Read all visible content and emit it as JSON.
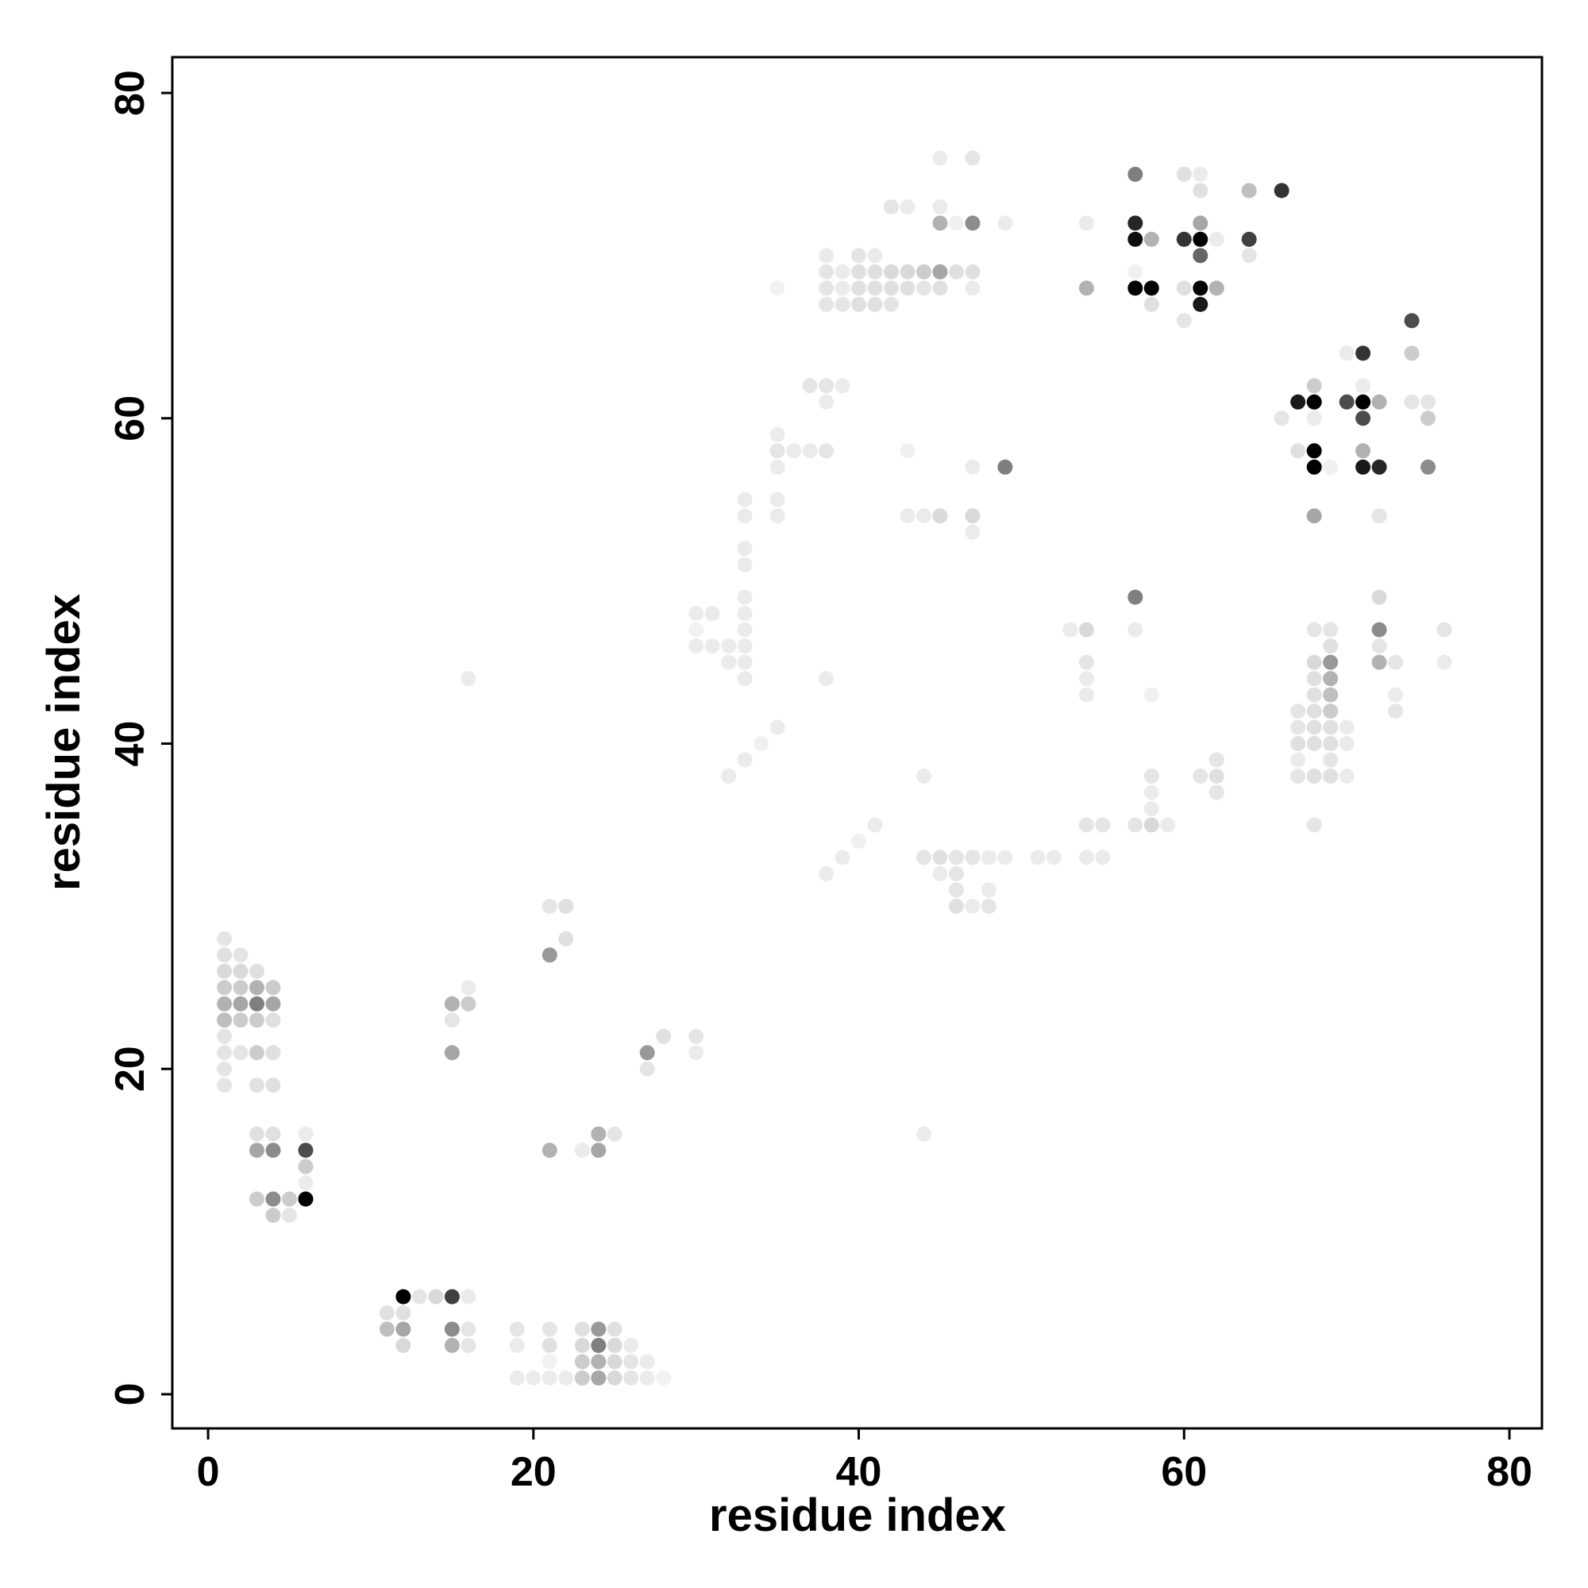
{
  "chart_data": {
    "type": "scatter",
    "title": "",
    "xlabel": "residue index",
    "ylabel": "residue index",
    "xlim": [
      -2.2,
      82
    ],
    "ylim": [
      -2.1,
      82.2
    ],
    "xticks": [
      0,
      20,
      40,
      60,
      80
    ],
    "yticks": [
      0,
      20,
      40,
      60,
      80
    ],
    "grid": false,
    "legend": "none",
    "marker_color": "#000000",
    "value_meaning": "point gray level (0 = white, 1 = black)",
    "points": [
      [
        1,
        28,
        0.1
      ],
      [
        1,
        27,
        0.12
      ],
      [
        1,
        26,
        0.15
      ],
      [
        1,
        25,
        0.2
      ],
      [
        1,
        24,
        0.3
      ],
      [
        1,
        23,
        0.25
      ],
      [
        1,
        22,
        0.1
      ],
      [
        1,
        21,
        0.1
      ],
      [
        1,
        20,
        0.1
      ],
      [
        1,
        19,
        0.1
      ],
      [
        2,
        27,
        0.1
      ],
      [
        2,
        26,
        0.15
      ],
      [
        2,
        25,
        0.2
      ],
      [
        2,
        24,
        0.35
      ],
      [
        2,
        23,
        0.2
      ],
      [
        2,
        21,
        0.1
      ],
      [
        3,
        26,
        0.12
      ],
      [
        3,
        25,
        0.3
      ],
      [
        3,
        24,
        0.5
      ],
      [
        3,
        23,
        0.2
      ],
      [
        3,
        21,
        0.2
      ],
      [
        3,
        19,
        0.12
      ],
      [
        3,
        16,
        0.12
      ],
      [
        3,
        15,
        0.35
      ],
      [
        3,
        12,
        0.2
      ],
      [
        4,
        25,
        0.2
      ],
      [
        4,
        24,
        0.35
      ],
      [
        4,
        23,
        0.12
      ],
      [
        4,
        21,
        0.12
      ],
      [
        4,
        19,
        0.12
      ],
      [
        4,
        16,
        0.12
      ],
      [
        4,
        15,
        0.45
      ],
      [
        4,
        12,
        0.45
      ],
      [
        4,
        11,
        0.2
      ],
      [
        5,
        12,
        0.2
      ],
      [
        5,
        11,
        0.1
      ],
      [
        6,
        16,
        0.08
      ],
      [
        6,
        15,
        0.7
      ],
      [
        6,
        14,
        0.2
      ],
      [
        6,
        13,
        0.08
      ],
      [
        6,
        12,
        1.0
      ],
      [
        11,
        5,
        0.12
      ],
      [
        11,
        4,
        0.25
      ],
      [
        12,
        6,
        1.0
      ],
      [
        12,
        5,
        0.12
      ],
      [
        12,
        4,
        0.35
      ],
      [
        12,
        3,
        0.15
      ],
      [
        13,
        6,
        0.1
      ],
      [
        14,
        6,
        0.15
      ],
      [
        15,
        24,
        0.3
      ],
      [
        15,
        23,
        0.1
      ],
      [
        15,
        21,
        0.35
      ],
      [
        15,
        6,
        0.75
      ],
      [
        15,
        4,
        0.45
      ],
      [
        15,
        3,
        0.3
      ],
      [
        16,
        25,
        0.08
      ],
      [
        16,
        24,
        0.2
      ],
      [
        16,
        6,
        0.08
      ],
      [
        16,
        4,
        0.1
      ],
      [
        16,
        3,
        0.1
      ],
      [
        16,
        44,
        0.08
      ],
      [
        19,
        4,
        0.1
      ],
      [
        19,
        3,
        0.08
      ],
      [
        19,
        1,
        0.08
      ],
      [
        20,
        1,
        0.08
      ],
      [
        21,
        30,
        0.1
      ],
      [
        21,
        27,
        0.4
      ],
      [
        21,
        15,
        0.3
      ],
      [
        21,
        4,
        0.1
      ],
      [
        21,
        3,
        0.12
      ],
      [
        21,
        2,
        0.05
      ],
      [
        21,
        1,
        0.08
      ],
      [
        22,
        30,
        0.12
      ],
      [
        22,
        28,
        0.12
      ],
      [
        22,
        1,
        0.08
      ],
      [
        23,
        15,
        0.08
      ],
      [
        23,
        4,
        0.12
      ],
      [
        23,
        3,
        0.15
      ],
      [
        23,
        2,
        0.2
      ],
      [
        23,
        1,
        0.2
      ],
      [
        24,
        16,
        0.3
      ],
      [
        24,
        15,
        0.35
      ],
      [
        24,
        4,
        0.4
      ],
      [
        24,
        3,
        0.5
      ],
      [
        24,
        2,
        0.3
      ],
      [
        24,
        1,
        0.35
      ],
      [
        25,
        16,
        0.1
      ],
      [
        25,
        4,
        0.12
      ],
      [
        25,
        3,
        0.15
      ],
      [
        25,
        2,
        0.15
      ],
      [
        25,
        1,
        0.15
      ],
      [
        26,
        3,
        0.08
      ],
      [
        26,
        2,
        0.1
      ],
      [
        26,
        1,
        0.1
      ],
      [
        27,
        21,
        0.4
      ],
      [
        27,
        20,
        0.1
      ],
      [
        27,
        2,
        0.08
      ],
      [
        27,
        1,
        0.08
      ],
      [
        28,
        22,
        0.12
      ],
      [
        28,
        1,
        0.05
      ],
      [
        30,
        48,
        0.08
      ],
      [
        30,
        47,
        0.05
      ],
      [
        30,
        46,
        0.08
      ],
      [
        30,
        22,
        0.1
      ],
      [
        30,
        21,
        0.08
      ],
      [
        31,
        48,
        0.08
      ],
      [
        31,
        46,
        0.08
      ],
      [
        32,
        46,
        0.08
      ],
      [
        32,
        45,
        0.08
      ],
      [
        32,
        38,
        0.08
      ],
      [
        33,
        55,
        0.08
      ],
      [
        33,
        54,
        0.08
      ],
      [
        33,
        52,
        0.08
      ],
      [
        33,
        51,
        0.08
      ],
      [
        33,
        49,
        0.08
      ],
      [
        33,
        48,
        0.08
      ],
      [
        33,
        47,
        0.08
      ],
      [
        33,
        46,
        0.08
      ],
      [
        33,
        45,
        0.08
      ],
      [
        33,
        44,
        0.08
      ],
      [
        33,
        39,
        0.08
      ],
      [
        34,
        40,
        0.06
      ],
      [
        35,
        59,
        0.08
      ],
      [
        35,
        58,
        0.1
      ],
      [
        35,
        57,
        0.08
      ],
      [
        35,
        55,
        0.08
      ],
      [
        35,
        54,
        0.08
      ],
      [
        35,
        41,
        0.08
      ],
      [
        35,
        68,
        0.05
      ],
      [
        36,
        58,
        0.08
      ],
      [
        37,
        62,
        0.1
      ],
      [
        37,
        58,
        0.08
      ],
      [
        38,
        70,
        0.08
      ],
      [
        38,
        69,
        0.1
      ],
      [
        38,
        68,
        0.1
      ],
      [
        38,
        67,
        0.1
      ],
      [
        38,
        62,
        0.1
      ],
      [
        38,
        61,
        0.08
      ],
      [
        38,
        58,
        0.1
      ],
      [
        38,
        44,
        0.08
      ],
      [
        38,
        32,
        0.08
      ],
      [
        39,
        69,
        0.08
      ],
      [
        39,
        68,
        0.08
      ],
      [
        39,
        67,
        0.1
      ],
      [
        39,
        62,
        0.08
      ],
      [
        39,
        33,
        0.08
      ],
      [
        40,
        70,
        0.1
      ],
      [
        40,
        69,
        0.12
      ],
      [
        40,
        68,
        0.12
      ],
      [
        40,
        67,
        0.12
      ],
      [
        40,
        34,
        0.06
      ],
      [
        41,
        70,
        0.08
      ],
      [
        41,
        69,
        0.12
      ],
      [
        41,
        68,
        0.12
      ],
      [
        41,
        67,
        0.12
      ],
      [
        41,
        35,
        0.08
      ],
      [
        42,
        73,
        0.1
      ],
      [
        42,
        69,
        0.15
      ],
      [
        42,
        68,
        0.12
      ],
      [
        42,
        67,
        0.1
      ],
      [
        43,
        73,
        0.08
      ],
      [
        43,
        69,
        0.15
      ],
      [
        43,
        68,
        0.12
      ],
      [
        43,
        58,
        0.06
      ],
      [
        43,
        54,
        0.08
      ],
      [
        44,
        69,
        0.2
      ],
      [
        44,
        68,
        0.1
      ],
      [
        44,
        54,
        0.08
      ],
      [
        44,
        38,
        0.08
      ],
      [
        44,
        33,
        0.1
      ],
      [
        44,
        16,
        0.08
      ],
      [
        45,
        76,
        0.08
      ],
      [
        45,
        73,
        0.08
      ],
      [
        45,
        72,
        0.3
      ],
      [
        45,
        69,
        0.35
      ],
      [
        45,
        68,
        0.12
      ],
      [
        45,
        54,
        0.15
      ],
      [
        45,
        33,
        0.12
      ],
      [
        45,
        32,
        0.08
      ],
      [
        46,
        72,
        0.06
      ],
      [
        46,
        69,
        0.12
      ],
      [
        46,
        33,
        0.1
      ],
      [
        46,
        32,
        0.1
      ],
      [
        46,
        31,
        0.1
      ],
      [
        46,
        30,
        0.12
      ],
      [
        47,
        76,
        0.1
      ],
      [
        47,
        72,
        0.45
      ],
      [
        47,
        69,
        0.12
      ],
      [
        47,
        68,
        0.08
      ],
      [
        47,
        57,
        0.08
      ],
      [
        47,
        54,
        0.15
      ],
      [
        47,
        53,
        0.08
      ],
      [
        47,
        33,
        0.1
      ],
      [
        47,
        30,
        0.08
      ],
      [
        48,
        33,
        0.08
      ],
      [
        48,
        31,
        0.08
      ],
      [
        48,
        30,
        0.1
      ],
      [
        49,
        72,
        0.08
      ],
      [
        49,
        57,
        0.5
      ],
      [
        49,
        33,
        0.08
      ],
      [
        51,
        33,
        0.08
      ],
      [
        52,
        33,
        0.08
      ],
      [
        53,
        47,
        0.08
      ],
      [
        54,
        72,
        0.08
      ],
      [
        54,
        68,
        0.3
      ],
      [
        54,
        47,
        0.15
      ],
      [
        54,
        45,
        0.1
      ],
      [
        54,
        44,
        0.08
      ],
      [
        54,
        43,
        0.08
      ],
      [
        54,
        35,
        0.1
      ],
      [
        54,
        33,
        0.08
      ],
      [
        55,
        35,
        0.1
      ],
      [
        55,
        33,
        0.08
      ],
      [
        57,
        75,
        0.5
      ],
      [
        57,
        72,
        0.85
      ],
      [
        57,
        71,
        0.95
      ],
      [
        57,
        69,
        0.06
      ],
      [
        57,
        68,
        1.0
      ],
      [
        57,
        49,
        0.5
      ],
      [
        57,
        47,
        0.08
      ],
      [
        57,
        35,
        0.1
      ],
      [
        58,
        71,
        0.3
      ],
      [
        58,
        68,
        1.0
      ],
      [
        58,
        67,
        0.12
      ],
      [
        58,
        43,
        0.06
      ],
      [
        58,
        38,
        0.1
      ],
      [
        58,
        37,
        0.08
      ],
      [
        58,
        36,
        0.08
      ],
      [
        58,
        35,
        0.15
      ],
      [
        59,
        35,
        0.08
      ],
      [
        60,
        75,
        0.12
      ],
      [
        60,
        71,
        0.8
      ],
      [
        60,
        68,
        0.12
      ],
      [
        60,
        66,
        0.1
      ],
      [
        61,
        75,
        0.08
      ],
      [
        61,
        74,
        0.12
      ],
      [
        61,
        72,
        0.35
      ],
      [
        61,
        71,
        1.0
      ],
      [
        61,
        70,
        0.6
      ],
      [
        61,
        68,
        1.0
      ],
      [
        61,
        67,
        0.9
      ],
      [
        61,
        38,
        0.1
      ],
      [
        62,
        71,
        0.08
      ],
      [
        62,
        68,
        0.3
      ],
      [
        62,
        39,
        0.1
      ],
      [
        62,
        38,
        0.12
      ],
      [
        62,
        37,
        0.1
      ],
      [
        64,
        74,
        0.25
      ],
      [
        64,
        71,
        0.75
      ],
      [
        64,
        70,
        0.1
      ],
      [
        66,
        74,
        0.8
      ],
      [
        66,
        60,
        0.1
      ],
      [
        67,
        61,
        0.9
      ],
      [
        67,
        58,
        0.12
      ],
      [
        67,
        42,
        0.1
      ],
      [
        67,
        41,
        0.1
      ],
      [
        67,
        40,
        0.12
      ],
      [
        67,
        39,
        0.08
      ],
      [
        67,
        38,
        0.1
      ],
      [
        68,
        62,
        0.2
      ],
      [
        68,
        61,
        1.0
      ],
      [
        68,
        60,
        0.08
      ],
      [
        68,
        58,
        1.0
      ],
      [
        68,
        57,
        1.0
      ],
      [
        68,
        54,
        0.35
      ],
      [
        68,
        47,
        0.1
      ],
      [
        68,
        45,
        0.15
      ],
      [
        68,
        44,
        0.12
      ],
      [
        68,
        43,
        0.12
      ],
      [
        68,
        42,
        0.12
      ],
      [
        68,
        41,
        0.12
      ],
      [
        68,
        40,
        0.12
      ],
      [
        68,
        38,
        0.12
      ],
      [
        68,
        35,
        0.1
      ],
      [
        69,
        57,
        0.06
      ],
      [
        69,
        47,
        0.1
      ],
      [
        69,
        46,
        0.12
      ],
      [
        69,
        45,
        0.4
      ],
      [
        69,
        44,
        0.3
      ],
      [
        69,
        43,
        0.25
      ],
      [
        69,
        42,
        0.2
      ],
      [
        69,
        41,
        0.12
      ],
      [
        69,
        40,
        0.12
      ],
      [
        69,
        39,
        0.1
      ],
      [
        69,
        38,
        0.12
      ],
      [
        70,
        64,
        0.08
      ],
      [
        70,
        61,
        0.7
      ],
      [
        70,
        41,
        0.08
      ],
      [
        70,
        40,
        0.08
      ],
      [
        70,
        38,
        0.08
      ],
      [
        71,
        64,
        0.8
      ],
      [
        71,
        62,
        0.08
      ],
      [
        71,
        61,
        1.0
      ],
      [
        71,
        60,
        0.7
      ],
      [
        71,
        58,
        0.3
      ],
      [
        71,
        57,
        0.9
      ],
      [
        72,
        61,
        0.3
      ],
      [
        72,
        57,
        0.85
      ],
      [
        72,
        54,
        0.1
      ],
      [
        72,
        49,
        0.15
      ],
      [
        72,
        47,
        0.45
      ],
      [
        72,
        46,
        0.1
      ],
      [
        72,
        45,
        0.3
      ],
      [
        73,
        45,
        0.1
      ],
      [
        73,
        43,
        0.08
      ],
      [
        73,
        42,
        0.1
      ],
      [
        74,
        66,
        0.7
      ],
      [
        74,
        64,
        0.2
      ],
      [
        74,
        61,
        0.1
      ],
      [
        75,
        61,
        0.1
      ],
      [
        75,
        60,
        0.2
      ],
      [
        75,
        57,
        0.45
      ],
      [
        76,
        47,
        0.1
      ],
      [
        76,
        45,
        0.08
      ]
    ]
  }
}
